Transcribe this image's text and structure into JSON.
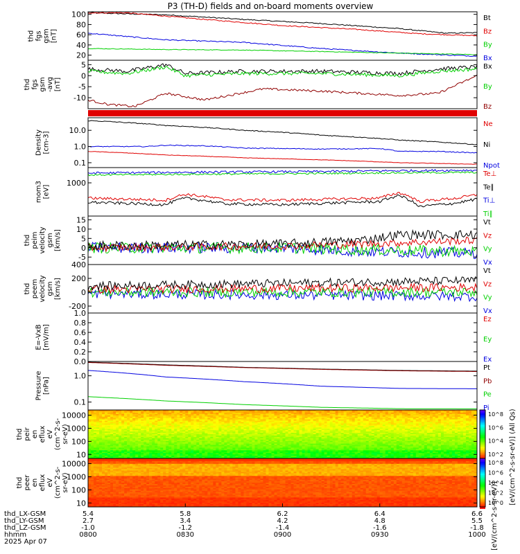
{
  "title": "P3 (TH-D) fields and on-board moments overview",
  "colors": {
    "black": "#000000",
    "red": "#e00000",
    "green": "#00d000",
    "blue": "#0000e0",
    "darkred": "#900000"
  },
  "chart_data": [
    {
      "type": "line",
      "ylabel": [
        "thd",
        "fgs",
        "gsm",
        "[nT]"
      ],
      "ylim": [
        10,
        105
      ],
      "yticks": [
        20,
        40,
        60,
        80,
        100
      ],
      "legend": [
        {
          "name": "Bt",
          "color": "black"
        },
        {
          "name": "Bz",
          "color": "red"
        },
        {
          "name": "By",
          "color": "green"
        },
        {
          "name": "Bx",
          "color": "blue"
        }
      ],
      "series": [
        {
          "name": "Bt",
          "color": "black",
          "x": [
            0,
            0.2,
            0.4,
            0.6,
            0.8,
            0.92,
            1
          ],
          "y": [
            103,
            99,
            90,
            82,
            72,
            63,
            64
          ],
          "noise": 1
        },
        {
          "name": "Bz",
          "color": "red",
          "x": [
            0.1,
            0.3,
            0.5,
            0.7,
            0.85,
            1
          ],
          "y": [
            103,
            90,
            78,
            70,
            62,
            58
          ],
          "noise": 1
        },
        {
          "name": "By",
          "color": "blue",
          "x": [
            0,
            0.2,
            0.4,
            0.6,
            0.8,
            1
          ],
          "y": [
            63,
            50,
            45,
            33,
            24,
            18
          ],
          "noise": 1
        },
        {
          "name": "Bx",
          "color": "green",
          "x": [
            0,
            0.2,
            0.4,
            0.6,
            0.8,
            1
          ],
          "y": [
            33,
            31,
            30,
            27,
            24,
            21
          ],
          "noise": 0.6
        }
      ]
    },
    {
      "type": "line",
      "ylabel": [
        "thd",
        "fgs",
        "gsm",
        "-avg",
        "[nT]"
      ],
      "ylim": [
        -15,
        7
      ],
      "yticks": [
        -10,
        -5,
        0,
        5
      ],
      "legend": [
        {
          "name": "Bx",
          "color": "black"
        },
        {
          "name": "By",
          "color": "green"
        },
        {
          "name": "Bz",
          "color": "darkred"
        }
      ],
      "series": [
        {
          "name": "Bx",
          "color": "black",
          "x": [
            0,
            0.1,
            0.2,
            0.25,
            0.4,
            0.6,
            0.8,
            0.9,
            1
          ],
          "y": [
            3,
            2,
            5,
            1,
            2,
            2,
            1,
            3,
            4
          ],
          "noise": 0.9
        },
        {
          "name": "By",
          "color": "green",
          "x": [
            0,
            0.1,
            0.2,
            0.25,
            0.4,
            0.6,
            0.8,
            0.9,
            1
          ],
          "y": [
            2,
            1,
            4,
            0,
            1,
            1,
            0,
            2,
            3
          ],
          "noise": 0.8
        },
        {
          "name": "Bz",
          "color": "darkred",
          "x": [
            0,
            0.05,
            0.12,
            0.2,
            0.3,
            0.45,
            0.6,
            0.8,
            0.9,
            1
          ],
          "y": [
            -11,
            -13,
            -14,
            -8,
            -11,
            -6,
            -7,
            -9,
            -8,
            0
          ],
          "noise": 0.5
        }
      ]
    },
    {
      "type": "bar",
      "name": "mode-bar",
      "color": "red"
    },
    {
      "type": "line",
      "ylabel": [
        "Density",
        "[cm-3]"
      ],
      "scale": "log",
      "ylim": [
        0.05,
        60
      ],
      "yticks": [
        0.1,
        1.0,
        10.0
      ],
      "ytick_labels": [
        "0.1",
        "1.0",
        "10.0"
      ],
      "legend": [
        {
          "name": "Ne",
          "color": "red"
        },
        {
          "name": "Ni",
          "color": "black"
        },
        {
          "name": "Npot",
          "color": "blue"
        }
      ],
      "series": [
        {
          "name": "Ne",
          "color": "black",
          "x": [
            0,
            0.2,
            0.4,
            0.6,
            0.8,
            1
          ],
          "y": [
            40,
            20,
            10,
            5,
            2.5,
            1.3
          ],
          "noise": 0.02
        },
        {
          "name": "Ni",
          "color": "blue",
          "x": [
            0,
            0.15,
            0.2,
            0.3,
            0.4,
            0.6,
            0.75,
            0.8,
            0.9,
            1
          ],
          "y": [
            1.0,
            1.0,
            1.2,
            1.1,
            0.8,
            0.7,
            0.75,
            0.5,
            0.5,
            0.4
          ],
          "noise": 0.02
        },
        {
          "name": "Npot",
          "color": "red",
          "x": [
            0,
            0.2,
            0.4,
            0.6,
            0.8,
            1
          ],
          "y": [
            0.5,
            0.3,
            0.2,
            0.15,
            0.1,
            0.08
          ],
          "noise": 0.01
        }
      ]
    },
    {
      "type": "line",
      "ylabel": [
        "mom3",
        "[eV]"
      ],
      "scale": "log",
      "ylim": [
        30,
        5000
      ],
      "yticks": [
        1000
      ],
      "ytick_labels": [
        "1000"
      ],
      "legend": [
        {
          "name": "Te⊥",
          "color": "red"
        },
        {
          "name": "Te∥",
          "color": "black"
        },
        {
          "name": "Ti⊥",
          "color": "blue"
        },
        {
          "name": "Ti∥",
          "color": "green"
        }
      ],
      "series": [
        {
          "name": "Te⊥",
          "color": "blue",
          "x": [
            0,
            0.3,
            0.6,
            0.8,
            1
          ],
          "y": [
            2800,
            3100,
            3300,
            3600,
            3800
          ],
          "noise": 0.04
        },
        {
          "name": "Te∥",
          "color": "green",
          "x": [
            0,
            0.3,
            0.6,
            0.8,
            1
          ],
          "y": [
            2300,
            2500,
            2700,
            2900,
            3000
          ],
          "noise": 0.03
        },
        {
          "name": "Ti⊥",
          "color": "red",
          "x": [
            0,
            0.2,
            0.25,
            0.35,
            0.5,
            0.75,
            0.8,
            0.85,
            0.95,
            1
          ],
          "y": [
            200,
            160,
            300,
            170,
            160,
            200,
            350,
            140,
            200,
            280
          ],
          "noise": 0.05
        },
        {
          "name": "Ti∥",
          "color": "black",
          "x": [
            0,
            0.2,
            0.25,
            0.35,
            0.5,
            0.75,
            0.8,
            0.85,
            0.95,
            1
          ],
          "y": [
            130,
            100,
            200,
            110,
            100,
            140,
            260,
            80,
            120,
            180
          ],
          "noise": 0.05
        }
      ]
    },
    {
      "type": "line",
      "ylabel": [
        "thd",
        "peim",
        "velocity",
        "gsm",
        "[km/s]"
      ],
      "ylim": [
        -9,
        17
      ],
      "yticks": [
        -5,
        0,
        5,
        10,
        15
      ],
      "legend": [
        {
          "name": "Vt",
          "color": "black"
        },
        {
          "name": "Vz",
          "color": "red"
        },
        {
          "name": "Vy",
          "color": "green"
        },
        {
          "name": "Vx",
          "color": "blue"
        }
      ],
      "series": [
        {
          "name": "Vx",
          "color": "blue",
          "x": [
            0,
            0.5,
            0.7,
            1
          ],
          "y": [
            0,
            0,
            -2,
            -3
          ],
          "noise": 3
        },
        {
          "name": "Vy",
          "color": "green",
          "x": [
            0,
            0.5,
            0.7,
            1
          ],
          "y": [
            0,
            0,
            -1,
            -2
          ],
          "noise": 3
        },
        {
          "name": "Vz",
          "color": "red",
          "x": [
            0,
            0.5,
            0.7,
            1
          ],
          "y": [
            0,
            1,
            2,
            4
          ],
          "noise": 2
        },
        {
          "name": "Vt",
          "color": "black",
          "x": [
            0,
            0.5,
            0.7,
            0.8,
            1
          ],
          "y": [
            1,
            2,
            4,
            7,
            7
          ],
          "noise": 2.5
        }
      ]
    },
    {
      "type": "line",
      "ylabel": [
        "thd",
        "peem",
        "velocity",
        "gsm",
        "[km/s]"
      ],
      "ylim": [
        -300,
        400
      ],
      "yticks": [
        -200,
        0,
        200,
        400
      ],
      "legend": [
        {
          "name": "Vt",
          "color": "black"
        },
        {
          "name": "Vz",
          "color": "red"
        },
        {
          "name": "Vy",
          "color": "green"
        },
        {
          "name": "Vx",
          "color": "blue"
        }
      ],
      "series": [
        {
          "name": "Vx",
          "color": "blue",
          "x": [
            0,
            1
          ],
          "y": [
            -20,
            -60
          ],
          "noise": 70
        },
        {
          "name": "Vy",
          "color": "green",
          "x": [
            0,
            1
          ],
          "y": [
            0,
            0
          ],
          "noise": 70
        },
        {
          "name": "Vz",
          "color": "red",
          "x": [
            0,
            1
          ],
          "y": [
            40,
            70
          ],
          "noise": 60
        },
        {
          "name": "Vt",
          "color": "black",
          "x": [
            0,
            1
          ],
          "y": [
            90,
            170
          ],
          "noise": 60
        }
      ]
    },
    {
      "type": "line",
      "ylabel": [
        "E=-VxB",
        "[mV/m]"
      ],
      "ylim": [
        0,
        1
      ],
      "yticks": [
        0.0,
        0.2,
        0.4,
        0.6,
        0.8,
        1.0
      ],
      "ytick_labels": [
        "0.0",
        "0.2",
        "0.4",
        "0.6",
        "0.8",
        "1.0"
      ],
      "legend": [
        {
          "name": "Ez",
          "color": "red"
        },
        {
          "name": "Ey",
          "color": "green"
        },
        {
          "name": "Ex",
          "color": "blue"
        }
      ],
      "series": []
    },
    {
      "type": "line",
      "ylabel": [
        "Pressure",
        "[nPa]"
      ],
      "scale": "log",
      "ylim": [
        0.05,
        3.5
      ],
      "yticks": [
        0.1,
        1.0
      ],
      "ytick_labels": [
        "0.1",
        "1.0"
      ],
      "legend": [
        {
          "name": "Pt",
          "color": "black"
        },
        {
          "name": "Pb",
          "color": "darkred"
        },
        {
          "name": "Pe",
          "color": "green"
        },
        {
          "name": "Pi",
          "color": "blue"
        }
      ],
      "series": [
        {
          "name": "Pt",
          "color": "black",
          "x": [
            0,
            0.2,
            0.4,
            0.6,
            0.8,
            1
          ],
          "y": [
            3.3,
            2.6,
            2.1,
            1.8,
            1.6,
            1.5
          ],
          "noise": 0
        },
        {
          "name": "Pb",
          "color": "darkred",
          "x": [
            0,
            0.2,
            0.4,
            0.6,
            0.8,
            1
          ],
          "y": [
            3.2,
            2.5,
            2.05,
            1.75,
            1.55,
            1.45
          ],
          "noise": 0
        },
        {
          "name": "Pi",
          "color": "blue",
          "x": [
            0,
            0.2,
            0.4,
            0.6,
            0.8,
            1
          ],
          "y": [
            1.6,
            0.9,
            0.6,
            0.4,
            0.33,
            0.32
          ],
          "noise": 0
        },
        {
          "name": "Pe",
          "color": "green",
          "x": [
            0,
            0.2,
            0.4,
            0.6,
            0.8,
            1
          ],
          "y": [
            0.16,
            0.11,
            0.08,
            0.063,
            0.056,
            0.055
          ],
          "noise": 0
        }
      ]
    },
    {
      "type": "heatmap",
      "ylabel": [
        "thd",
        "peir",
        "en",
        "eflux",
        "eV",
        "(cm^2-s-",
        "sr-eV)"
      ],
      "scale": "log",
      "ylim": [
        5,
        25000
      ],
      "yticks": [
        10,
        100,
        1000,
        10000
      ],
      "ytick_labels": [
        "10",
        "100",
        "1000",
        "10000"
      ],
      "colorbar": {
        "ticks": [
          "10^2",
          "10^4",
          "10^6",
          "10^8"
        ],
        "label": "[eV/(cm^2-s-sr-eV)] (All Qs)"
      }
    },
    {
      "type": "heatmap",
      "ylabel": [
        "thd",
        "peer",
        "en",
        "eflux",
        "eV",
        "(cm^2-s-",
        "sr-eV)"
      ],
      "scale": "log",
      "ylim": [
        5,
        25000
      ],
      "yticks": [
        10,
        100,
        1000,
        10000
      ],
      "ytick_labels": [
        "10",
        "100",
        "1000",
        "10000"
      ],
      "colorbar": {
        "ticks": [
          "10^0",
          "10^2",
          "10^4",
          "10^6",
          "10^8"
        ],
        "label": "[eV/(cm^2-s-sr-eV)]"
      }
    }
  ],
  "xaxis": {
    "rows": [
      {
        "label": "thd_LX-GSM",
        "values": [
          "5.4",
          "5.8",
          "6.2",
          "6.4",
          "6.6"
        ]
      },
      {
        "label": "thd_LY-GSM",
        "values": [
          "2.7",
          "3.4",
          "4.2",
          "4.8",
          "5.5"
        ]
      },
      {
        "label": "thd_LZ-GSM",
        "values": [
          "-1.0",
          "-1.2",
          "-1.4",
          "-1.6",
          "-1.8"
        ]
      },
      {
        "label": "hhmm",
        "values": [
          "0800",
          "0830",
          "0900",
          "0930",
          "1000"
        ]
      }
    ],
    "date": "2025 Apr 07",
    "bottom_label": "[eV/(cm^2-s-sr-eV)]"
  }
}
